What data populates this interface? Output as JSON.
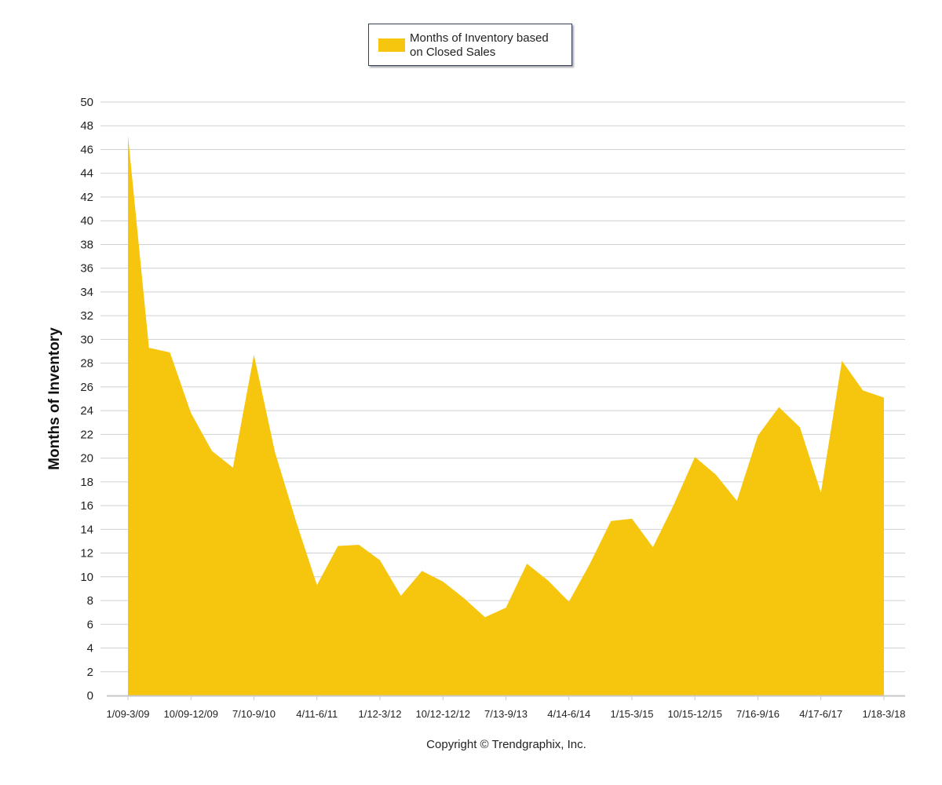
{
  "legend": {
    "label_line1": "Months of Inventory based",
    "label_line2": "on Closed Sales"
  },
  "copyright": "Copyright © Trendgraphix, Inc.",
  "colors": {
    "area": "#f6c50e",
    "grid": "#d0d0d0",
    "axis": "#c8c8c8",
    "text": "#222222"
  },
  "chart_data": {
    "type": "area",
    "title": "",
    "ylabel": "Months of Inventory",
    "xlabel": "",
    "ylim": [
      0,
      50
    ],
    "ytick_step": 2,
    "grid": true,
    "legend_position": "top-center",
    "x_tick_labels": [
      "1/09-3/09",
      "10/09-12/09",
      "7/10-9/10",
      "4/11-6/11",
      "1/12-3/12",
      "10/12-12/12",
      "7/13-9/13",
      "4/14-6/14",
      "1/15-3/15",
      "10/15-12/15",
      "7/16-9/16",
      "4/17-6/17",
      "1/18-3/18"
    ],
    "series": [
      {
        "name": "Months of Inventory based on Closed Sales",
        "values": [
          47.2,
          29.3,
          28.9,
          23.8,
          20.6,
          19.2,
          28.7,
          20.5,
          14.7,
          9.3,
          12.6,
          12.7,
          11.4,
          8.4,
          10.5,
          9.6,
          8.2,
          6.6,
          7.4,
          11.1,
          9.7,
          7.9,
          11.1,
          14.7,
          14.9,
          12.5,
          16.1,
          20.1,
          18.6,
          16.4,
          21.9,
          24.3,
          22.6,
          17.1,
          28.2,
          25.7,
          25.1
        ]
      }
    ]
  }
}
